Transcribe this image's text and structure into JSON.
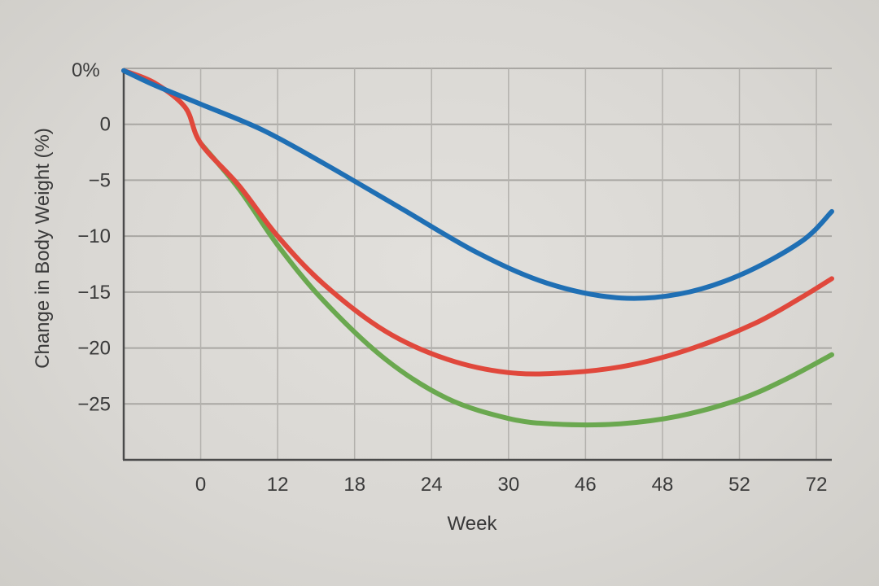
{
  "chart_data": {
    "type": "line",
    "title": "",
    "xlabel": "Week",
    "ylabel": "Change in Body Weight (%)",
    "x_tick_labels": [
      "0",
      "12",
      "18",
      "24",
      "30",
      "46",
      "48",
      "52",
      "72"
    ],
    "y_ticks": [
      {
        "value": 0,
        "label": "0"
      },
      {
        "value": -5,
        "label": "−5"
      },
      {
        "value": -10,
        "label": "−10"
      },
      {
        "value": -15,
        "label": "−15"
      },
      {
        "value": -20,
        "label": "−20"
      },
      {
        "value": -25,
        "label": "−25"
      }
    ],
    "y_top_label": "0%",
    "ylim": [
      -30,
      5
    ],
    "xlim_index": [
      -1,
      8.2
    ],
    "grid": true,
    "series": [
      {
        "name": "blue",
        "color": "#1f6fb4",
        "points": [
          [
            -1,
            4.8
          ],
          [
            -0.6,
            3.5
          ],
          [
            0,
            1.8
          ],
          [
            0.8,
            -0.5
          ],
          [
            1.6,
            -3.5
          ],
          [
            2.6,
            -7.5
          ],
          [
            3.6,
            -11.5
          ],
          [
            4.5,
            -14.2
          ],
          [
            5.4,
            -15.5
          ],
          [
            6.2,
            -15.2
          ],
          [
            7,
            -13.5
          ],
          [
            7.8,
            -10.5
          ],
          [
            8.2,
            -7.8
          ]
        ]
      },
      {
        "name": "red",
        "color": "#e0483c",
        "points": [
          [
            -1,
            4.8
          ],
          [
            -0.6,
            3.7
          ],
          [
            -0.2,
            1.5
          ],
          [
            0,
            -1.7
          ],
          [
            0.5,
            -5.5
          ],
          [
            1,
            -10
          ],
          [
            1.6,
            -14.3
          ],
          [
            2.4,
            -18.5
          ],
          [
            3.2,
            -21
          ],
          [
            4,
            -22.2
          ],
          [
            4.8,
            -22.2
          ],
          [
            5.6,
            -21.5
          ],
          [
            6.4,
            -20
          ],
          [
            7.2,
            -17.8
          ],
          [
            7.8,
            -15.5
          ],
          [
            8.2,
            -13.8
          ]
        ]
      },
      {
        "name": "green",
        "color": "#6aa84f",
        "points": [
          [
            0,
            -1.7
          ],
          [
            0.5,
            -5.8
          ],
          [
            1,
            -10.8
          ],
          [
            1.6,
            -15.8
          ],
          [
            2.4,
            -21
          ],
          [
            3.2,
            -24.5
          ],
          [
            4,
            -26.3
          ],
          [
            4.6,
            -26.8
          ],
          [
            5.4,
            -26.8
          ],
          [
            6.2,
            -26.1
          ],
          [
            7,
            -24.6
          ],
          [
            7.6,
            -22.8
          ],
          [
            8.2,
            -20.6
          ]
        ]
      }
    ]
  }
}
